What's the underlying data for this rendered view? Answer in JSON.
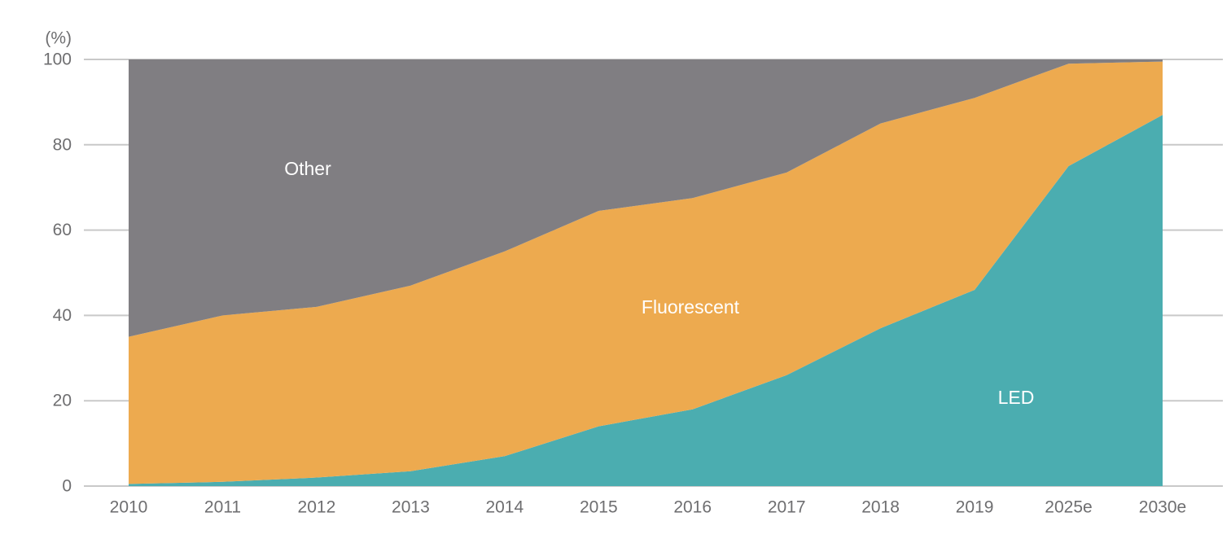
{
  "chart_data": {
    "type": "area",
    "stacked": true,
    "title": "",
    "unit_label": "(%)",
    "categories": [
      "2010",
      "2011",
      "2012",
      "2013",
      "2014",
      "2015",
      "2016",
      "2017",
      "2018",
      "2019",
      "2025e",
      "2030e"
    ],
    "series": [
      {
        "name": "LED",
        "color": "#4badb0",
        "values": [
          0.5,
          1,
          2,
          3.5,
          7,
          14,
          18,
          26,
          37,
          46,
          75,
          87
        ]
      },
      {
        "name": "Fluorescent",
        "color": "#edaa4f",
        "values": [
          34.5,
          39,
          40,
          43.5,
          48,
          50.5,
          49.5,
          47.5,
          48,
          45,
          24,
          12.5
        ]
      },
      {
        "name": "Other",
        "color": "#807e82",
        "values": [
          65,
          60,
          58,
          53,
          45,
          35.5,
          32.5,
          26.5,
          15,
          9,
          1,
          0.5
        ]
      }
    ],
    "ylim": [
      0,
      100
    ],
    "yticks": [
      0,
      20,
      40,
      60,
      80,
      100
    ],
    "grid": "horizontal",
    "legend": "labels-inside-areas"
  },
  "style": {
    "grid_color": "#c9c9c9",
    "axis_text_color": "#6e6e70",
    "area_label_color": "#ffffff"
  }
}
